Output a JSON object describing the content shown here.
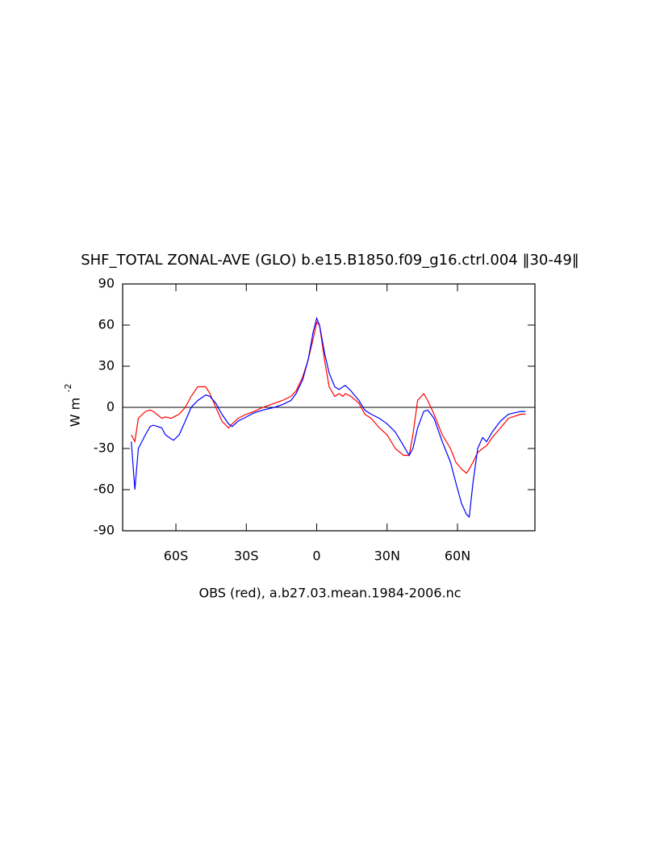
{
  "chart_data": {
    "type": "line",
    "title": "SHF_TOTAL ZONAL-AVE (GLO) b.e15.B1850.f09_g16.ctrl.004 ‖30-49‖",
    "xlabel": "OBS (red), a.b27.03.mean.1984-2006.nc",
    "ylabel": "W m",
    "ylabel_exponent": "-2",
    "x": [
      -79,
      -77.5,
      -76,
      -73,
      -71,
      -69.6,
      -66,
      -64.5,
      -62,
      -61,
      -58.6,
      -56,
      -53.5,
      -50.7,
      -47.3,
      -45.5,
      -43,
      -40.4,
      -37.6,
      -36,
      -33.5,
      -30,
      -26.7,
      -23,
      -18,
      -14.6,
      -11,
      -8.8,
      -6,
      -3.6,
      -1.5,
      0,
      1.2,
      3.3,
      5.3,
      7.7,
      9.5,
      11.2,
      12.2,
      14.6,
      18,
      20.5,
      23.2,
      26.7,
      30,
      33.5,
      37,
      39.4,
      41,
      43,
      45.6,
      47.3,
      50,
      53.5,
      57,
      59.3,
      61.7,
      63.8,
      65,
      66.6,
      68.6,
      70.7,
      72.4,
      74.8,
      78.3,
      81.7,
      86.9,
      89
    ],
    "series": [
      {
        "color": "#ff0000",
        "values": [
          -20,
          -25,
          -8,
          -3,
          -2,
          -3,
          -8,
          -7,
          -8,
          -7,
          -5,
          0,
          8,
          15,
          15,
          10,
          0,
          -10,
          -15,
          -12,
          -8,
          -5,
          -3,
          0,
          3,
          5,
          8,
          12,
          22,
          35,
          50,
          62,
          60,
          35,
          15,
          8,
          10,
          8,
          10,
          8,
          3,
          -5,
          -8,
          -15,
          -20,
          -30,
          -35,
          -35,
          -20,
          5,
          10,
          5,
          -5,
          -20,
          -30,
          -40,
          -45,
          -48,
          -45,
          -40,
          -33,
          -30,
          -28,
          -22,
          -15,
          -8,
          -5,
          -5
        ]
      },
      {
        "color": "#0000ff",
        "values": [
          -25,
          -60,
          -30,
          -20,
          -14,
          -13,
          -15,
          -20,
          -23,
          -24,
          -20,
          -10,
          0,
          5,
          9,
          8,
          3,
          -5,
          -12,
          -14,
          -10,
          -7,
          -4,
          -2,
          0,
          2,
          5,
          10,
          20,
          35,
          55,
          65,
          60,
          40,
          25,
          15,
          13,
          15,
          16,
          12,
          5,
          -2,
          -5,
          -8,
          -12,
          -18,
          -28,
          -35,
          -30,
          -15,
          -3,
          -2,
          -8,
          -25,
          -40,
          -55,
          -70,
          -78,
          -80,
          -55,
          -30,
          -22,
          -25,
          -18,
          -10,
          -5,
          -3,
          -3
        ]
      }
    ],
    "reference_line": 0,
    "xlim": [
      -82.7,
      93
    ],
    "ylim": [
      -90,
      90
    ],
    "xticks": [
      {
        "value": -60,
        "label": "60S"
      },
      {
        "value": -30,
        "label": "30S"
      },
      0,
      {
        "value": 30,
        "label": "30N"
      },
      {
        "value": 60,
        "label": "60N"
      }
    ],
    "yticks": [
      -90,
      -60,
      -30,
      0,
      30,
      60,
      90
    ]
  }
}
